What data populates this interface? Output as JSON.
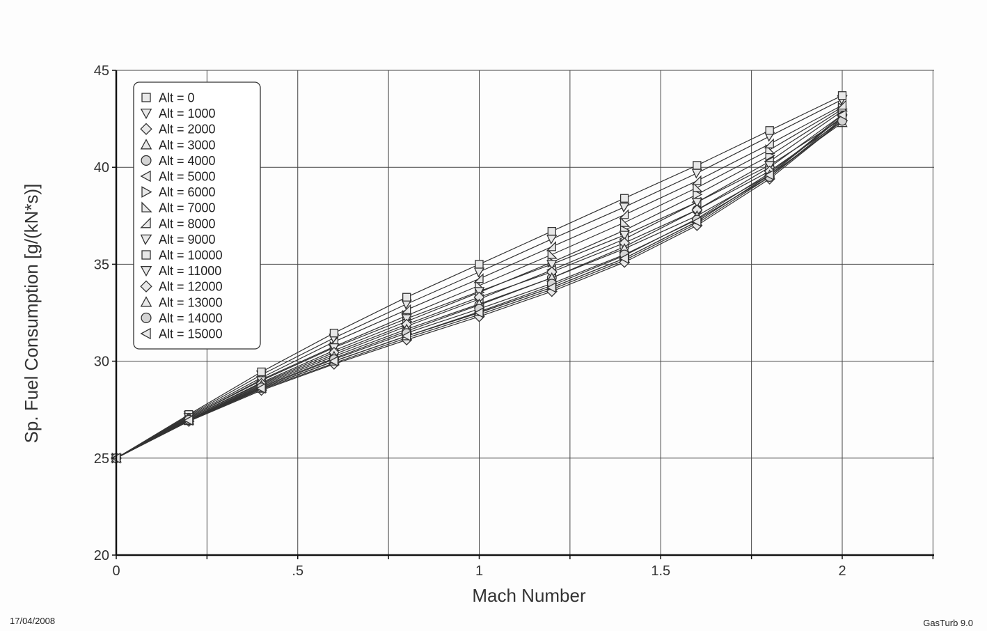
{
  "footer": {
    "date": "17/04/2008",
    "app": "GasTurb 9.0"
  },
  "chart_data": {
    "type": "line",
    "title": "",
    "xlabel": "Mach Number",
    "ylabel": "Sp. Fuel Consumption [g/(kN*s)]",
    "xlim": [
      0,
      2.25
    ],
    "ylim": [
      20,
      45
    ],
    "xticks": [
      {
        "v": 0,
        "label": "0"
      },
      {
        "v": 0.5,
        "label": ".5"
      },
      {
        "v": 1,
        "label": "1"
      },
      {
        "v": 1.5,
        "label": "1.5"
      },
      {
        "v": 2,
        "label": "2"
      }
    ],
    "yticks": [
      {
        "v": 20,
        "label": "20"
      },
      {
        "v": 25,
        "label": "25"
      },
      {
        "v": 30,
        "label": "30"
      },
      {
        "v": 35,
        "label": "35"
      },
      {
        "v": 40,
        "label": "40"
      },
      {
        "v": 45,
        "label": "45"
      }
    ],
    "grid": true,
    "legend_position": "top-left",
    "series": [
      {
        "name": "Alt = 0",
        "marker": "square",
        "x": [
          0,
          0.2,
          0.4,
          0.6,
          0.8,
          1.0,
          1.2,
          1.4,
          1.6,
          1.8,
          2.0
        ],
        "y": [
          25,
          26.95,
          28.6,
          30.0,
          31.3,
          32.5,
          33.8,
          35.3,
          37.2,
          39.6,
          42.6
        ]
      },
      {
        "name": "Alt = 1000",
        "marker": "triangle-down",
        "x": [
          0,
          0.2,
          0.4,
          0.6,
          0.8,
          1.0,
          1.2,
          1.4,
          1.6,
          1.8,
          2.0
        ],
        "y": [
          25,
          26.92,
          28.55,
          29.9,
          31.2,
          32.4,
          33.7,
          35.2,
          37.1,
          39.5,
          42.5
        ]
      },
      {
        "name": "Alt = 2000",
        "marker": "diamond",
        "x": [
          0,
          0.2,
          0.4,
          0.6,
          0.8,
          1.0,
          1.2,
          1.4,
          1.6,
          1.8,
          2.0
        ],
        "y": [
          25,
          26.9,
          28.5,
          29.85,
          31.1,
          32.3,
          33.6,
          35.1,
          37.0,
          39.4,
          42.4
        ]
      },
      {
        "name": "Alt = 3000",
        "marker": "triangle-up",
        "x": [
          0,
          0.2,
          0.4,
          0.6,
          0.8,
          1.0,
          1.2,
          1.4,
          1.6,
          1.8,
          2.0
        ],
        "y": [
          25,
          26.93,
          28.6,
          30.0,
          31.3,
          32.55,
          33.9,
          35.45,
          37.35,
          39.7,
          42.6
        ]
      },
      {
        "name": "Alt = 4000",
        "marker": "circle",
        "x": [
          0,
          0.2,
          0.4,
          0.6,
          0.8,
          1.0,
          1.2,
          1.4,
          1.6,
          1.8,
          2.0
        ],
        "y": [
          25,
          26.97,
          28.7,
          30.15,
          31.55,
          32.9,
          34.3,
          35.9,
          37.8,
          40.0,
          42.7
        ]
      },
      {
        "name": "Alt = 5000",
        "marker": "triangle-left",
        "x": [
          0,
          0.2,
          0.4,
          0.6,
          0.8,
          1.0,
          1.2,
          1.4,
          1.6,
          1.8,
          2.0
        ],
        "y": [
          25,
          27.0,
          28.8,
          30.35,
          31.8,
          33.2,
          34.7,
          36.3,
          38.2,
          40.3,
          42.9
        ]
      },
      {
        "name": "Alt = 6000",
        "marker": "triangle-right",
        "x": [
          0,
          0.2,
          0.4,
          0.6,
          0.8,
          1.0,
          1.2,
          1.4,
          1.6,
          1.8,
          2.0
        ],
        "y": [
          25,
          27.05,
          28.9,
          30.55,
          32.05,
          33.55,
          35.1,
          36.75,
          38.6,
          40.6,
          43.0
        ]
      },
      {
        "name": "Alt = 7000",
        "marker": "right-triangle",
        "x": [
          0,
          0.2,
          0.4,
          0.6,
          0.8,
          1.0,
          1.2,
          1.4,
          1.6,
          1.8,
          2.0
        ],
        "y": [
          25,
          27.1,
          29.05,
          30.75,
          32.35,
          33.9,
          35.5,
          37.15,
          38.95,
          40.9,
          43.1
        ]
      },
      {
        "name": "Alt = 8000",
        "marker": "left-right-triangle",
        "x": [
          0,
          0.2,
          0.4,
          0.6,
          0.8,
          1.0,
          1.2,
          1.4,
          1.6,
          1.8,
          2.0
        ],
        "y": [
          25,
          27.15,
          29.15,
          31.0,
          32.65,
          34.25,
          35.9,
          37.55,
          39.3,
          41.2,
          43.2
        ]
      },
      {
        "name": "Alt = 9000",
        "marker": "down-triangle-2",
        "x": [
          0,
          0.2,
          0.4,
          0.6,
          0.8,
          1.0,
          1.2,
          1.4,
          1.6,
          1.8,
          2.0
        ],
        "y": [
          25,
          27.2,
          29.3,
          31.2,
          32.95,
          34.6,
          36.3,
          37.95,
          39.7,
          41.6,
          43.5
        ]
      },
      {
        "name": "Alt = 10000",
        "marker": "square",
        "x": [
          0,
          0.2,
          0.4,
          0.6,
          0.8,
          1.0,
          1.2,
          1.4,
          1.6,
          1.8,
          2.0
        ],
        "y": [
          25,
          27.25,
          29.45,
          31.45,
          33.3,
          35.0,
          36.7,
          38.4,
          40.1,
          41.9,
          43.7
        ]
      },
      {
        "name": "Alt = 11000",
        "marker": "triangle-down",
        "x": [
          0,
          0.2,
          0.4,
          0.6,
          0.8,
          1.0,
          1.2,
          1.4,
          1.6,
          1.8,
          2.0
        ],
        "y": [
          25,
          27.1,
          29.0,
          30.7,
          32.2,
          33.6,
          35.0,
          36.5,
          38.2,
          40.1,
          42.5
        ]
      },
      {
        "name": "Alt = 12000",
        "marker": "diamond",
        "x": [
          0,
          0.2,
          0.4,
          0.6,
          0.8,
          1.0,
          1.2,
          1.4,
          1.6,
          1.8,
          2.0
        ],
        "y": [
          25,
          27.05,
          28.85,
          30.45,
          31.9,
          33.3,
          34.6,
          36.1,
          37.8,
          39.8,
          42.4
        ]
      },
      {
        "name": "Alt = 13000",
        "marker": "triangle-up",
        "x": [
          0,
          0.2,
          0.4,
          0.6,
          0.8,
          1.0,
          1.2,
          1.4,
          1.6,
          1.8,
          2.0
        ],
        "y": [
          25,
          27.0,
          28.75,
          30.25,
          31.65,
          32.95,
          34.3,
          35.8,
          37.5,
          39.6,
          42.3
        ]
      },
      {
        "name": "Alt = 14000",
        "marker": "circle",
        "x": [
          0,
          0.2,
          0.4,
          0.6,
          0.8,
          1.0,
          1.2,
          1.4,
          1.6,
          1.8,
          2.0
        ],
        "y": [
          25,
          26.98,
          28.65,
          30.1,
          31.45,
          32.7,
          34.0,
          35.5,
          37.3,
          39.5,
          42.4
        ]
      },
      {
        "name": "Alt = 15000",
        "marker": "triangle-left",
        "x": [
          0,
          0.2,
          0.4,
          0.6,
          0.8,
          1.0,
          1.2,
          1.4,
          1.6,
          1.8,
          2.0
        ],
        "y": [
          25,
          26.95,
          28.6,
          30.0,
          31.3,
          32.5,
          33.8,
          35.3,
          37.2,
          39.6,
          42.7
        ]
      }
    ]
  }
}
